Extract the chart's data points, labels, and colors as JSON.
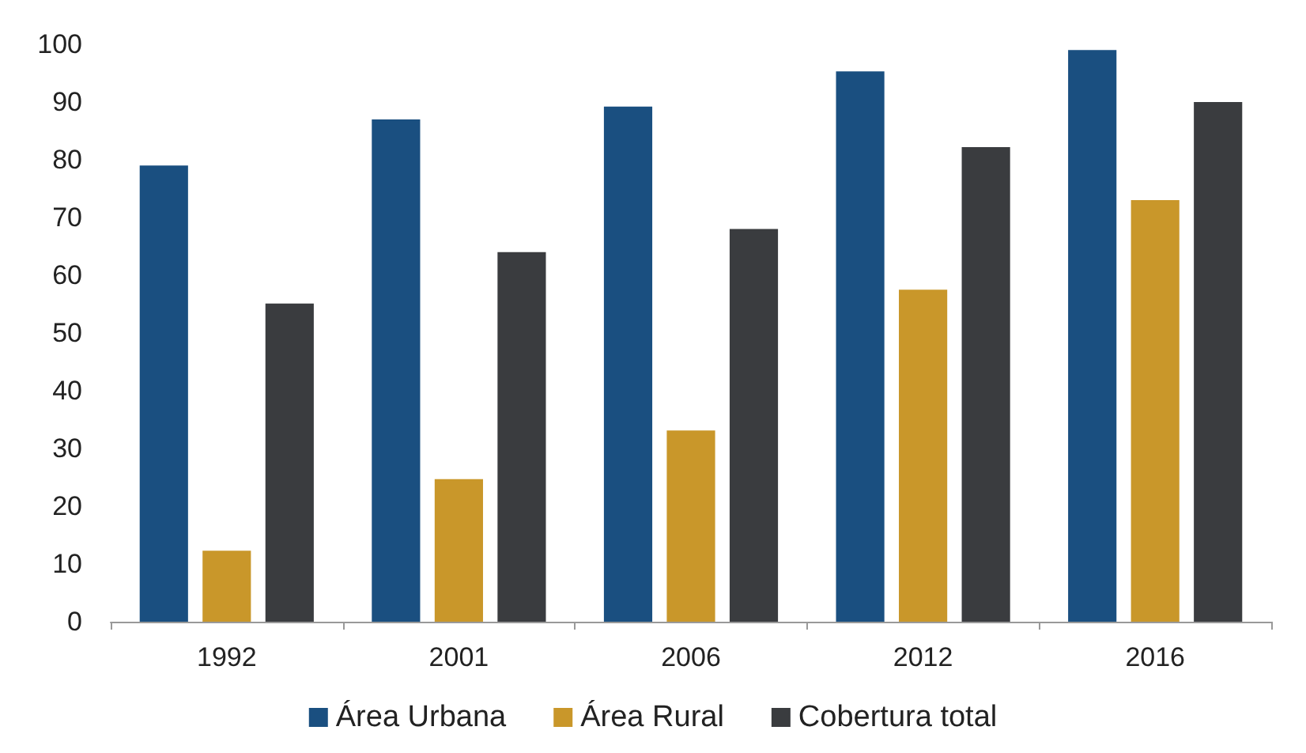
{
  "chart_data": {
    "type": "bar",
    "categories": [
      "1992",
      "2001",
      "2006",
      "2012",
      "2016"
    ],
    "series": [
      {
        "name": "Área Urbana",
        "color": "#1a4f80",
        "values": [
          79,
          87,
          89.2,
          95.3,
          99
        ]
      },
      {
        "name": "Área Rural",
        "color": "#c9972a",
        "values": [
          12.3,
          24.7,
          33.1,
          57.5,
          73
        ]
      },
      {
        "name": "Cobertura total",
        "color": "#3a3c3f",
        "values": [
          55.1,
          64,
          68,
          82.2,
          90
        ]
      }
    ],
    "ylim": [
      0,
      100
    ],
    "yticks": [
      0,
      10,
      20,
      30,
      40,
      50,
      60,
      70,
      80,
      90,
      100
    ],
    "grid": false,
    "legend": "bottom"
  }
}
